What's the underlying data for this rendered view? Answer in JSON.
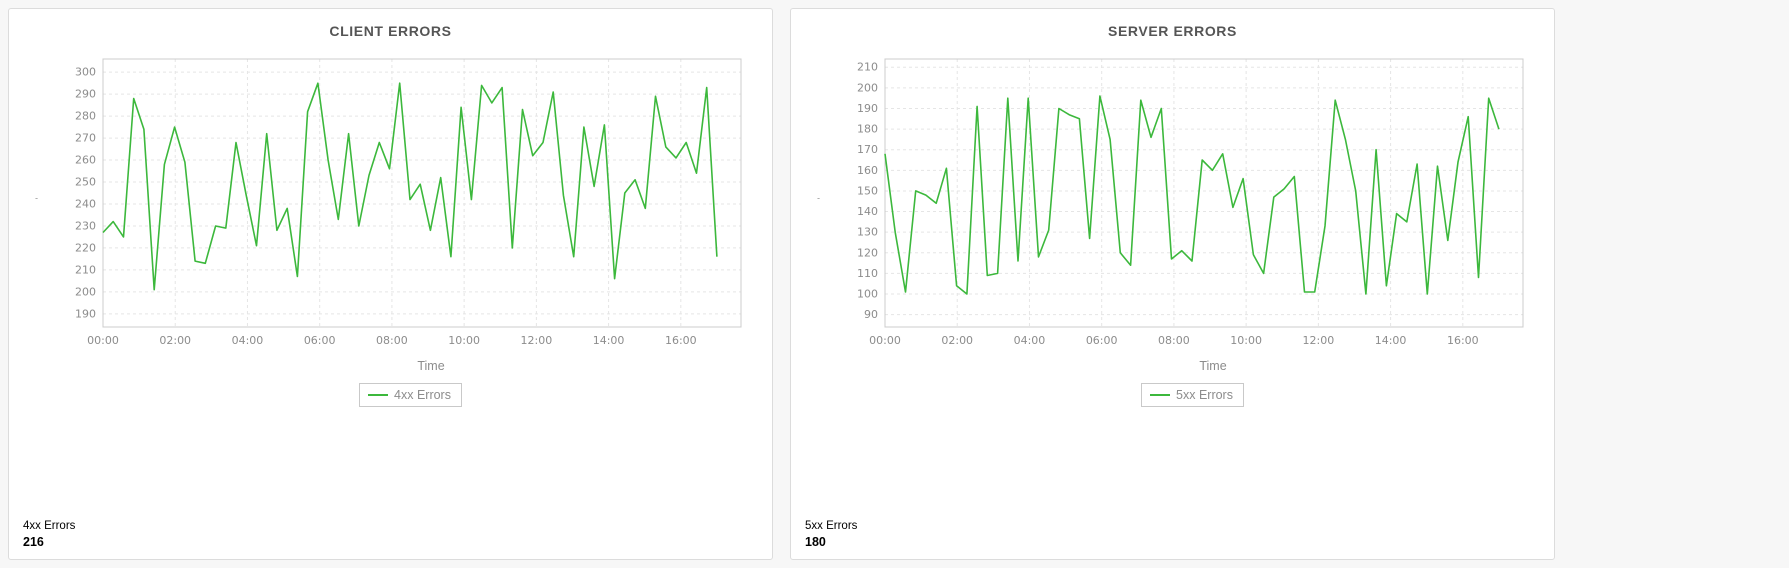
{
  "panels": [
    {
      "title": "CLIENT ERRORS",
      "x_axis_label": "Time",
      "legend_label": "4xx Errors",
      "stat_label": "4xx Errors",
      "stat_value": "216",
      "y_axis_mark": "'"
    },
    {
      "title": "SERVER ERRORS",
      "x_axis_label": "Time",
      "legend_label": "5xx Errors",
      "stat_label": "5xx Errors",
      "stat_value": "180",
      "y_axis_mark": "'"
    }
  ],
  "chart_data": [
    {
      "type": "line",
      "title": "CLIENT ERRORS",
      "xlabel": "Time",
      "ylabel": "",
      "series": [
        {
          "name": "4xx Errors",
          "color": "#3cb83c",
          "values": [
            227,
            232,
            225,
            288,
            274,
            201,
            258,
            275,
            259,
            214,
            213,
            230,
            229,
            268,
            244,
            221,
            272,
            228,
            238,
            207,
            282,
            295,
            260,
            233,
            272,
            230,
            253,
            268,
            256,
            295,
            242,
            249,
            228,
            252,
            216,
            284,
            242,
            294,
            286,
            293,
            220,
            283,
            262,
            268,
            291,
            244,
            216,
            275,
            248,
            276,
            206,
            245,
            251,
            238,
            289,
            266,
            261,
            268,
            254,
            293,
            216
          ]
        }
      ],
      "x_start": "00:00",
      "x_interval_minutes": 17,
      "xlim_minutes": [
        0,
        1060
      ],
      "ylim": [
        184,
        306
      ],
      "yticks": [
        190,
        200,
        210,
        220,
        230,
        240,
        250,
        260,
        270,
        280,
        290,
        300
      ],
      "xticks": [
        {
          "v": 0,
          "label": "00:00"
        },
        {
          "v": 120,
          "label": "02:00"
        },
        {
          "v": 240,
          "label": "04:00"
        },
        {
          "v": 360,
          "label": "06:00"
        },
        {
          "v": 480,
          "label": "08:00"
        },
        {
          "v": 600,
          "label": "10:00"
        },
        {
          "v": 720,
          "label": "12:00"
        },
        {
          "v": 840,
          "label": "14:00"
        },
        {
          "v": 960,
          "label": "16:00"
        }
      ],
      "grid": true,
      "legend_position": "bottom"
    },
    {
      "type": "line",
      "title": "SERVER ERRORS",
      "xlabel": "Time",
      "ylabel": "",
      "series": [
        {
          "name": "5xx Errors",
          "color": "#3cb83c",
          "values": [
            168,
            130,
            101,
            150,
            148,
            144,
            161,
            104,
            100,
            191,
            109,
            110,
            195,
            116,
            195,
            118,
            131,
            190,
            187,
            185,
            127,
            196,
            175,
            120,
            114,
            194,
            176,
            190,
            117,
            121,
            116,
            165,
            160,
            168,
            142,
            156,
            119,
            110,
            147,
            151,
            157,
            101,
            101,
            133,
            194,
            175,
            150,
            100,
            170,
            104,
            139,
            135,
            163,
            100,
            162,
            126,
            164,
            186,
            108,
            195,
            180
          ]
        }
      ],
      "x_start": "00:00",
      "x_interval_minutes": 17,
      "xlim_minutes": [
        0,
        1060
      ],
      "ylim": [
        84,
        214
      ],
      "yticks": [
        90,
        100,
        110,
        120,
        130,
        140,
        150,
        160,
        170,
        180,
        190,
        200,
        210
      ],
      "xticks": [
        {
          "v": 0,
          "label": "00:00"
        },
        {
          "v": 120,
          "label": "02:00"
        },
        {
          "v": 240,
          "label": "04:00"
        },
        {
          "v": 360,
          "label": "06:00"
        },
        {
          "v": 480,
          "label": "08:00"
        },
        {
          "v": 600,
          "label": "10:00"
        },
        {
          "v": 720,
          "label": "12:00"
        },
        {
          "v": 840,
          "label": "14:00"
        },
        {
          "v": 960,
          "label": "16:00"
        }
      ],
      "grid": true,
      "legend_position": "bottom"
    }
  ]
}
